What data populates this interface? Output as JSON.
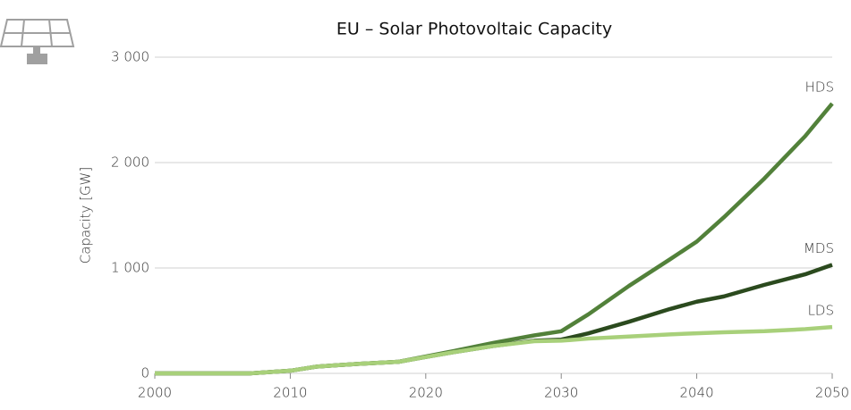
{
  "chart_data": {
    "type": "line",
    "title": "EU – Solar Photovoltaic Capacity",
    "y_label": "Capacity [GW]",
    "x": [
      2000,
      2005,
      2007,
      2010,
      2012,
      2015,
      2018,
      2020,
      2022,
      2025,
      2028,
      2030,
      2032,
      2035,
      2038,
      2040,
      2042,
      2045,
      2048,
      2050
    ],
    "series": [
      {
        "name": "HDS",
        "color": "#52813a",
        "values": [
          0,
          0,
          0,
          25,
          65,
          90,
          110,
          160,
          210,
          290,
          360,
          400,
          560,
          830,
          1080,
          1250,
          1480,
          1850,
          2250,
          2560
        ]
      },
      {
        "name": "MDS",
        "color": "#2b4a1e",
        "values": [
          0,
          0,
          0,
          25,
          65,
          90,
          110,
          155,
          200,
          260,
          310,
          320,
          380,
          490,
          610,
          680,
          730,
          840,
          940,
          1030
        ]
      },
      {
        "name": "LDS",
        "color": "#a8d07a",
        "values": [
          0,
          0,
          0,
          25,
          65,
          90,
          110,
          155,
          200,
          260,
          305,
          310,
          330,
          350,
          370,
          380,
          390,
          400,
          420,
          440
        ]
      }
    ],
    "xlim": [
      2000,
      2050
    ],
    "xticks": [
      2000,
      2010,
      2020,
      2030,
      2040,
      2050
    ],
    "ylim": [
      0,
      3000
    ],
    "yticks": [
      0,
      {
        "value": 1000,
        "label": "1 000"
      },
      {
        "value": 2000,
        "label": "2 000"
      },
      {
        "value": 3000,
        "label": "3 000"
      }
    ],
    "grid": true
  }
}
